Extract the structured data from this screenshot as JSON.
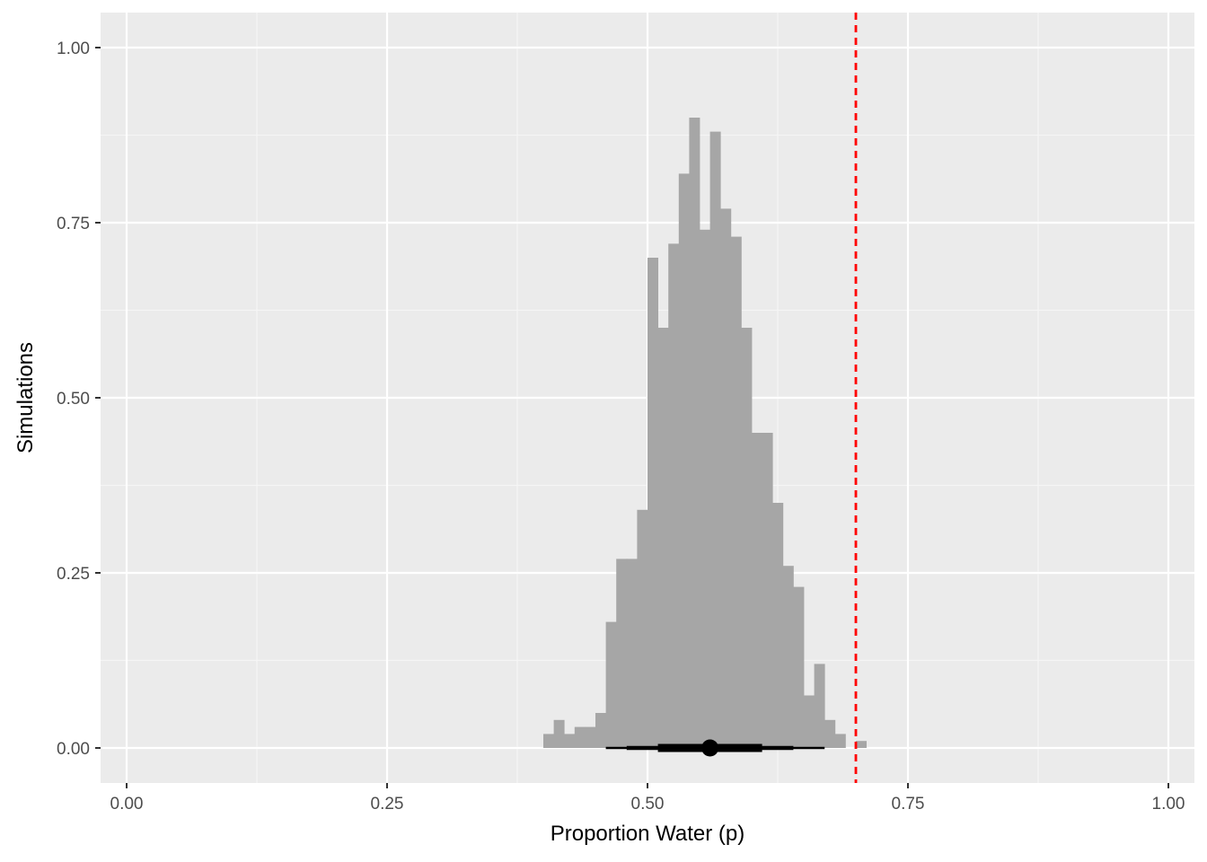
{
  "chart_data": {
    "type": "bar",
    "subtype": "histogram with interval summary",
    "xlabel": "Proportion Water (p)",
    "ylabel": "Simulations",
    "xlim": [
      -0.025,
      1.025
    ],
    "ylim": [
      -0.05,
      1.05
    ],
    "x_ticks": [
      0,
      0.25,
      0.5,
      0.75,
      1
    ],
    "x_tick_labels": [
      "0.00",
      "0.25",
      "0.50",
      "0.75",
      "1.00"
    ],
    "y_ticks": [
      0,
      0.25,
      0.5,
      0.75,
      1
    ],
    "y_tick_labels": [
      "0.00",
      "0.25",
      "0.50",
      "0.75",
      "1.00"
    ],
    "grid": true,
    "bin_width": 0.01,
    "bins": [
      {
        "x0": 0.4,
        "x1": 0.41,
        "value": 0.02
      },
      {
        "x0": 0.41,
        "x1": 0.42,
        "value": 0.04
      },
      {
        "x0": 0.42,
        "x1": 0.43,
        "value": 0.02
      },
      {
        "x0": 0.43,
        "x1": 0.44,
        "value": 0.03
      },
      {
        "x0": 0.44,
        "x1": 0.45,
        "value": 0.03
      },
      {
        "x0": 0.45,
        "x1": 0.46,
        "value": 0.05
      },
      {
        "x0": 0.46,
        "x1": 0.47,
        "value": 0.18
      },
      {
        "x0": 0.47,
        "x1": 0.48,
        "value": 0.27
      },
      {
        "x0": 0.48,
        "x1": 0.49,
        "value": 0.27
      },
      {
        "x0": 0.49,
        "x1": 0.5,
        "value": 0.34
      },
      {
        "x0": 0.5,
        "x1": 0.51,
        "value": 0.7
      },
      {
        "x0": 0.51,
        "x1": 0.52,
        "value": 0.6
      },
      {
        "x0": 0.52,
        "x1": 0.53,
        "value": 0.72
      },
      {
        "x0": 0.53,
        "x1": 0.54,
        "value": 0.82
      },
      {
        "x0": 0.54,
        "x1": 0.55,
        "value": 0.9
      },
      {
        "x0": 0.55,
        "x1": 0.56,
        "value": 0.74
      },
      {
        "x0": 0.56,
        "x1": 0.57,
        "value": 0.88
      },
      {
        "x0": 0.57,
        "x1": 0.58,
        "value": 0.77
      },
      {
        "x0": 0.58,
        "x1": 0.59,
        "value": 0.73
      },
      {
        "x0": 0.59,
        "x1": 0.6,
        "value": 0.6
      },
      {
        "x0": 0.6,
        "x1": 0.61,
        "value": 0.45
      },
      {
        "x0": 0.61,
        "x1": 0.62,
        "value": 0.45
      },
      {
        "x0": 0.62,
        "x1": 0.63,
        "value": 0.35
      },
      {
        "x0": 0.63,
        "x1": 0.64,
        "value": 0.26
      },
      {
        "x0": 0.64,
        "x1": 0.65,
        "value": 0.23
      },
      {
        "x0": 0.65,
        "x1": 0.66,
        "value": 0.075
      },
      {
        "x0": 0.66,
        "x1": 0.67,
        "value": 0.12
      },
      {
        "x0": 0.67,
        "x1": 0.68,
        "value": 0.04
      },
      {
        "x0": 0.68,
        "x1": 0.69,
        "value": 0.02
      },
      {
        "x0": 0.7,
        "x1": 0.71,
        "value": 0.01
      }
    ],
    "interval_summary": {
      "point": 0.56,
      "intervals": [
        {
          "low": 0.46,
          "high": 0.67,
          "level": "outer"
        },
        {
          "low": 0.48,
          "high": 0.64,
          "level": "middle"
        },
        {
          "low": 0.51,
          "high": 0.61,
          "level": "inner"
        }
      ]
    },
    "reference_line": {
      "x": 0.7,
      "style": "dashed"
    },
    "colors": {
      "panel_background": "#ebebeb",
      "grid_major": "#ffffff",
      "grid_minor": "#f5f5f5",
      "bar_fill": "#a6a6a6",
      "interval": "#000000",
      "reference_line": "#ff0000",
      "tick_mark": "#333333"
    }
  }
}
